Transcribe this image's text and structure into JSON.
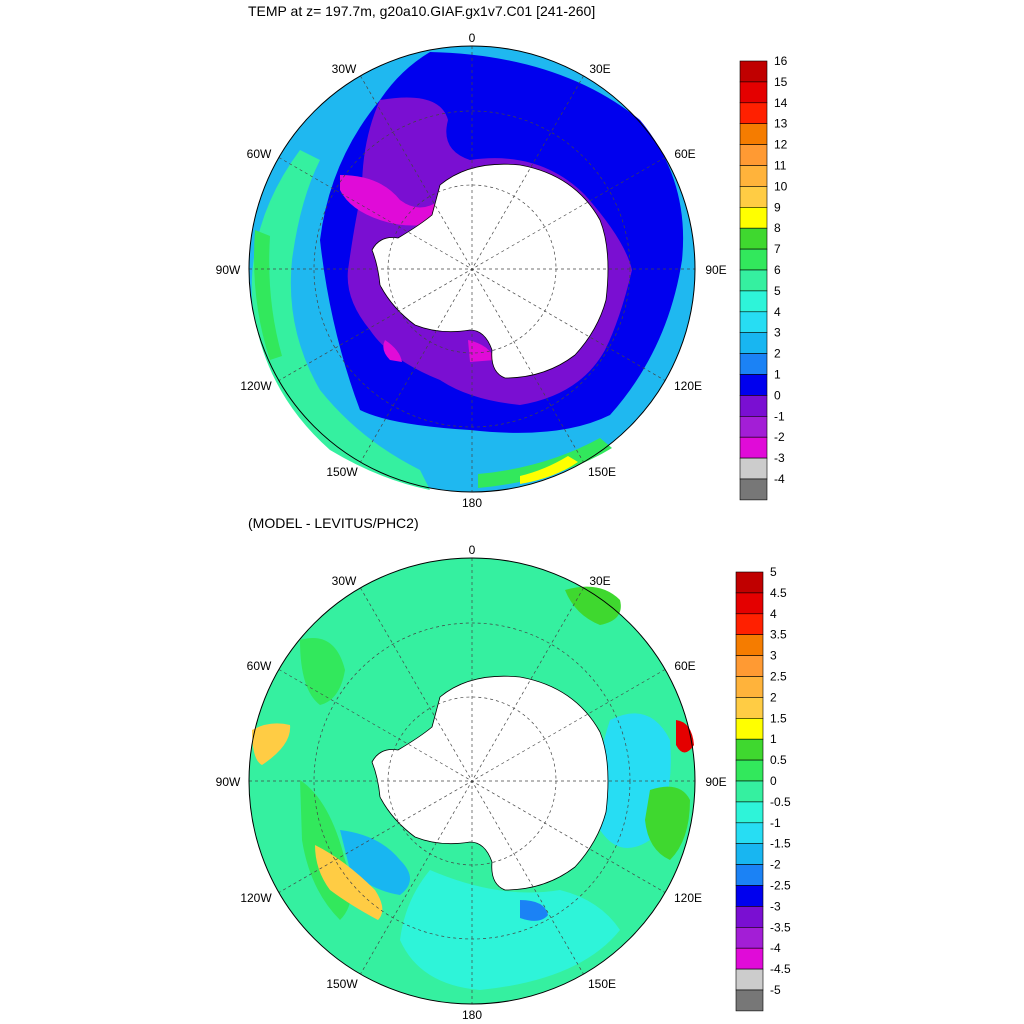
{
  "top_panel": {
    "title": "TEMP at z= 197.7m, g20a10.GIAF.gx1v7.C01 [241-260]",
    "lon_labels": {
      "n": "0",
      "ne30": "30E",
      "ne60": "60E",
      "e90": "90E",
      "se120": "120E",
      "se150": "150E",
      "s180": "180",
      "sw150": "150W",
      "sw120": "120W",
      "w90": "90W",
      "nw60": "60W",
      "nw30": "30W"
    },
    "colorbar": {
      "labels": [
        "16",
        "15",
        "14",
        "13",
        "12",
        "11",
        "10",
        "9",
        "8",
        "7",
        "6",
        "5",
        "4",
        "3",
        "2",
        "1",
        "0",
        "-1",
        "-2",
        "-3",
        "-4"
      ],
      "colors": [
        "#c00000",
        "#e40000",
        "#ff2000",
        "#f57c00",
        "#ff9a33",
        "#ffb33b",
        "#ffcc44",
        "#ffff00",
        "#3fd82f",
        "#32e85c",
        "#35f0a0",
        "#2ef4d9",
        "#27ddf3",
        "#18b6f1",
        "#1b82f5",
        "#0000ee",
        "#7a0fd2",
        "#a31ed6",
        "#e00bd8",
        "#cccccc",
        "#777777"
      ]
    }
  },
  "bottom_panel": {
    "title": "(MODEL - LEVITUS/PHC2)",
    "lon_labels": {
      "n": "0",
      "ne30": "30E",
      "ne60": "60E",
      "e90": "90E",
      "se120": "120E",
      "se150": "150E",
      "s180": "180",
      "sw150": "150W",
      "sw120": "120W",
      "w90": "90W",
      "nw60": "60W",
      "nw30": "30W"
    },
    "colorbar": {
      "labels": [
        "5",
        "4.5",
        "4",
        "3.5",
        "3",
        "2.5",
        "2",
        "1.5",
        "1",
        "0.5",
        "0",
        "-0.5",
        "-1",
        "-1.5",
        "-2",
        "-2.5",
        "-3",
        "-3.5",
        "-4",
        "-4.5",
        "-5"
      ],
      "colors": [
        "#c00000",
        "#e40000",
        "#ff2000",
        "#f57c00",
        "#ff9a33",
        "#ffb33b",
        "#ffcc44",
        "#ffff00",
        "#3fd82f",
        "#32e85c",
        "#35f0a0",
        "#2ef4d9",
        "#27ddf3",
        "#18b6f1",
        "#1b82f5",
        "#0000ee",
        "#7a0fd2",
        "#a31ed6",
        "#e00bd8",
        "#cccccc",
        "#777777"
      ]
    }
  }
}
